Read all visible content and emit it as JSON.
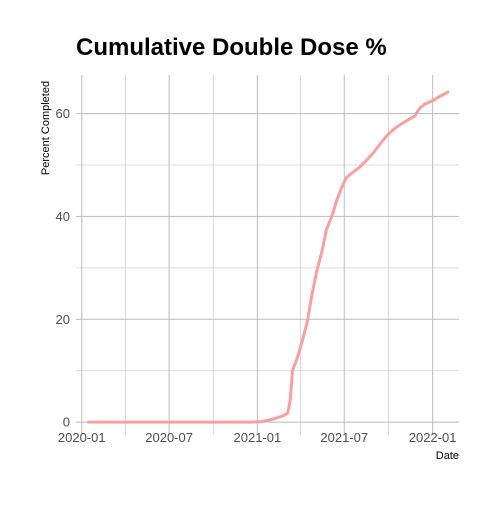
{
  "chart_data": {
    "type": "line",
    "title": "Cumulative Double Dose %",
    "xlabel": "Date",
    "ylabel": "Percent Completed",
    "x_type": "date",
    "xlim": [
      "2019-12-20",
      "2022-02-25"
    ],
    "ylim": [
      -2.5,
      67.5
    ],
    "x_ticks": [
      "2020-01",
      "2020-07",
      "2021-01",
      "2021-07",
      "2022-01"
    ],
    "x_tick_dates": [
      "2020-01-01",
      "2020-07-01",
      "2021-01-01",
      "2021-07-01",
      "2022-01-01"
    ],
    "x_minor_dates": [
      "2020-04-01",
      "2020-10-01",
      "2021-04-01",
      "2021-10-01"
    ],
    "y_ticks": [
      0,
      20,
      40,
      60
    ],
    "y_minor_ticks": [
      10,
      30,
      50
    ],
    "grid": true,
    "legend": "none",
    "series": [
      {
        "color": "#f8a0a0",
        "points": [
          [
            "2020-01-15",
            0
          ],
          [
            "2020-07-01",
            0
          ],
          [
            "2020-12-20",
            0
          ],
          [
            "2021-01-10",
            0.1
          ],
          [
            "2021-01-25",
            0.4
          ],
          [
            "2021-02-10",
            0.8
          ],
          [
            "2021-02-25",
            1.3
          ],
          [
            "2021-03-05",
            1.8
          ],
          [
            "2021-03-10",
            4.0
          ],
          [
            "2021-03-15",
            10.0
          ],
          [
            "2021-03-25",
            12.5
          ],
          [
            "2021-04-05",
            16.0
          ],
          [
            "2021-04-15",
            19.5
          ],
          [
            "2021-04-25",
            25.0
          ],
          [
            "2021-05-05",
            29.5
          ],
          [
            "2021-05-15",
            33.0
          ],
          [
            "2021-05-25",
            37.5
          ],
          [
            "2021-06-05",
            40.0
          ],
          [
            "2021-06-15",
            43.0
          ],
          [
            "2021-06-25",
            45.5
          ],
          [
            "2021-07-05",
            47.5
          ],
          [
            "2021-07-15",
            48.3
          ],
          [
            "2021-08-01",
            49.5
          ],
          [
            "2021-08-15",
            50.8
          ],
          [
            "2021-09-01",
            52.5
          ],
          [
            "2021-09-15",
            54.3
          ],
          [
            "2021-10-01",
            56.0
          ],
          [
            "2021-10-15",
            57.2
          ],
          [
            "2021-11-01",
            58.2
          ],
          [
            "2021-11-15",
            59.0
          ],
          [
            "2021-11-25",
            59.5
          ],
          [
            "2021-12-05",
            61.0
          ],
          [
            "2021-12-15",
            61.8
          ],
          [
            "2022-01-01",
            62.5
          ],
          [
            "2022-01-15",
            63.3
          ],
          [
            "2022-02-02",
            64.2
          ]
        ]
      }
    ]
  }
}
